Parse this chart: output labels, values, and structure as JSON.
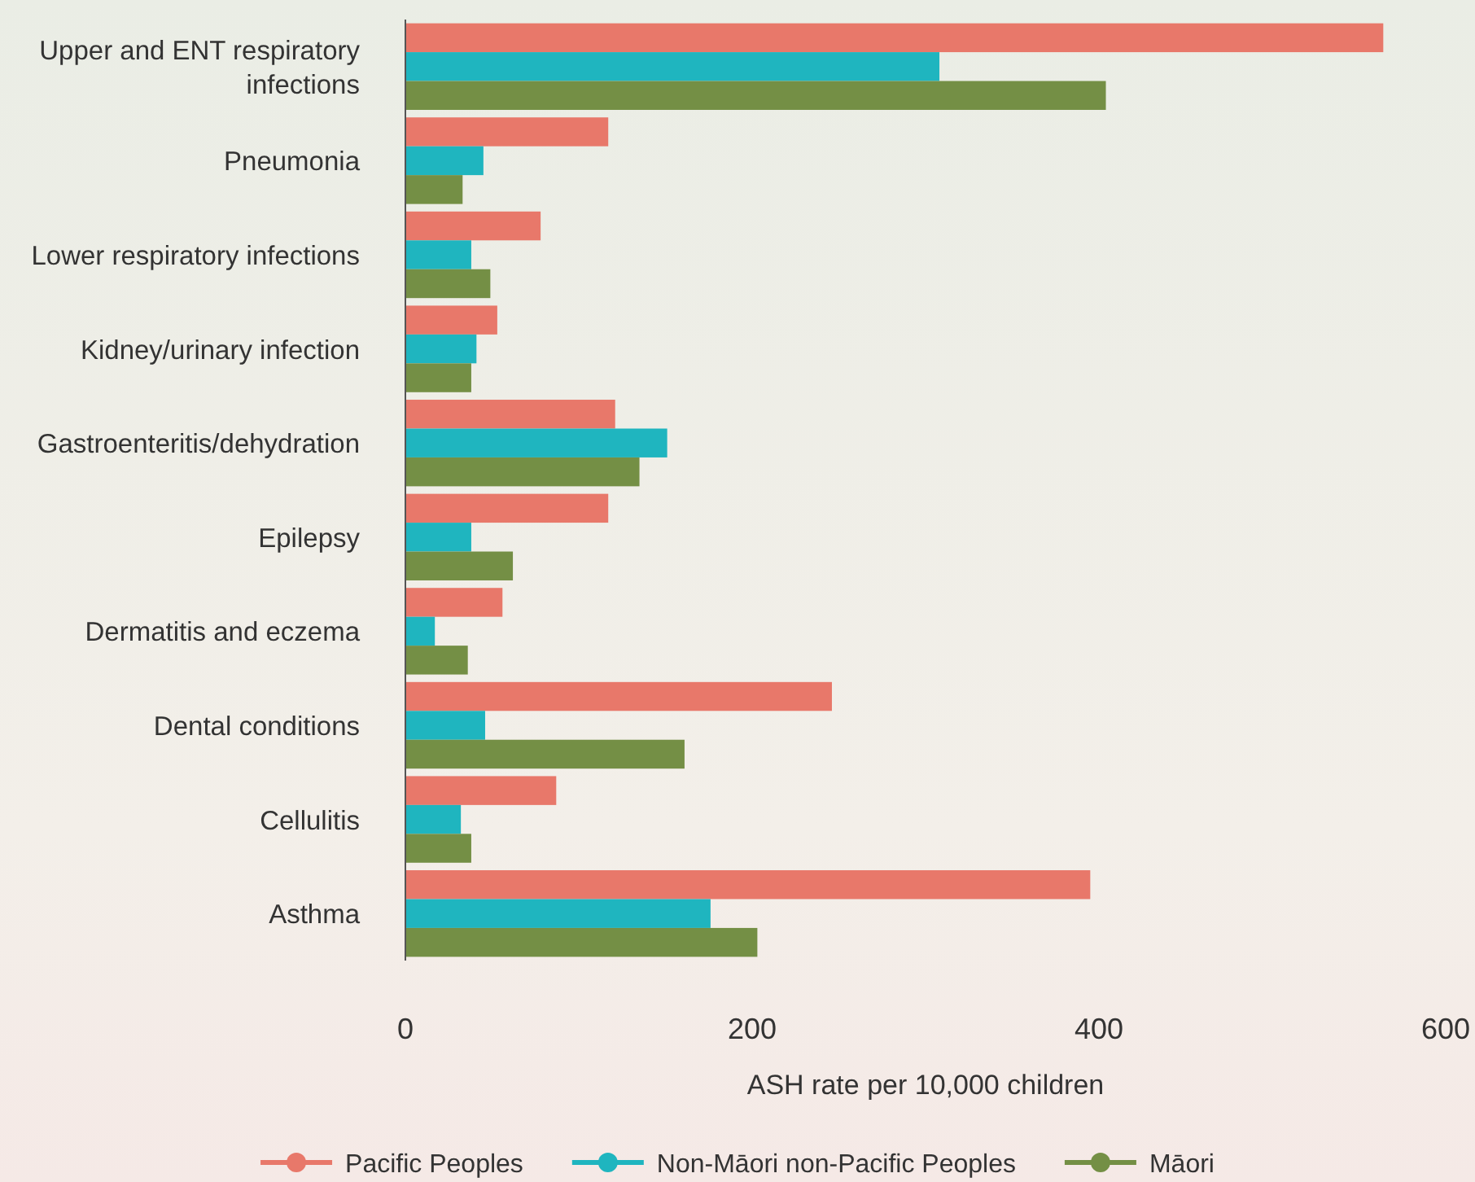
{
  "chart_data": {
    "type": "bar",
    "orientation": "horizontal",
    "xlabel": "ASH rate per 10,000 children",
    "categories": [
      "Upper and ENT respiratory infections",
      "Pneumonia",
      "Lower respiratory infections",
      "Kidney/urinary infection",
      "Gastroenteritis/dehydration",
      "Epilepsy",
      "Dermatitis and eczema",
      "Dental conditions",
      "Cellulitis",
      "Asthma"
    ],
    "series": [
      {
        "name": "Pacific Peoples",
        "color": "#e8786a",
        "values": [
          564,
          117,
          78,
          53,
          121,
          117,
          56,
          246,
          87,
          395
        ]
      },
      {
        "name": "Non-Māori non-Pacific Peoples",
        "color": "#1fb5bf",
        "values": [
          308,
          45,
          38,
          41,
          151,
          38,
          17,
          46,
          32,
          176
        ]
      },
      {
        "name": "Māori",
        "color": "#748f45",
        "values": [
          404,
          33,
          49,
          38,
          135,
          62,
          36,
          161,
          38,
          203
        ]
      }
    ],
    "xlim": [
      0,
      600
    ],
    "xticks": [
      0,
      200,
      400,
      600
    ],
    "legend": "bottom",
    "marker": "circle"
  }
}
